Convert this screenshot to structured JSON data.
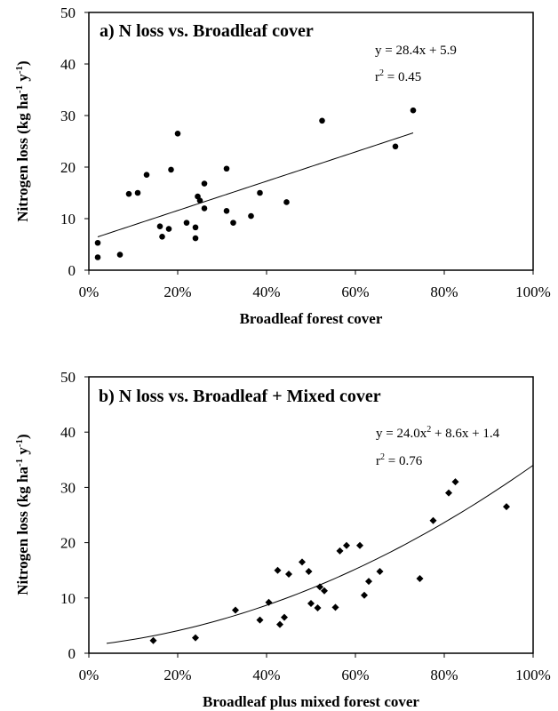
{
  "chart_data": [
    {
      "type": "scatter",
      "title": "a) N loss vs. Broadleaf cover",
      "xlabel": "Broadleaf forest cover",
      "ylabel": "Nitrogen loss (kg ha-1 y-1)",
      "ylabel_parts": {
        "main": "Nitrogen loss (kg ha",
        "sup1": "-1",
        "mid": " y",
        "sup2": "-1",
        "end": ")"
      },
      "xlim": [
        0,
        1
      ],
      "ylim": [
        0,
        50
      ],
      "xticks": [
        0,
        0.2,
        0.4,
        0.6,
        0.8,
        1.0
      ],
      "xtick_labels": [
        "0%",
        "20%",
        "40%",
        "60%",
        "80%",
        "100%"
      ],
      "yticks": [
        0,
        10,
        20,
        30,
        40,
        50
      ],
      "ytick_labels": [
        "0",
        "10",
        "20",
        "30",
        "40",
        "50"
      ],
      "marker": "circle",
      "grid": false,
      "equation": "y = 28.4x + 5.9",
      "r2_label": "r2 = 0.45",
      "r2_parts": {
        "pre": "r",
        "sup": "2",
        "post": " = 0.45"
      },
      "fit": {
        "kind": "linear",
        "a": 28.4,
        "b": 5.9,
        "x_range": [
          0.02,
          0.73
        ]
      },
      "series": [
        {
          "x": [
            0.02,
            0.02,
            0.07,
            0.09,
            0.11,
            0.13,
            0.16,
            0.165,
            0.18,
            0.185,
            0.2,
            0.22,
            0.24,
            0.24,
            0.245,
            0.25,
            0.26,
            0.26,
            0.31,
            0.31,
            0.325,
            0.365,
            0.385,
            0.445,
            0.525,
            0.69,
            0.73
          ],
          "y": [
            5.3,
            2.5,
            3.0,
            14.8,
            15.0,
            18.5,
            8.5,
            6.5,
            8.0,
            19.5,
            26.5,
            9.2,
            8.3,
            6.2,
            14.3,
            13.5,
            12.0,
            16.8,
            11.5,
            19.7,
            9.2,
            10.5,
            15.0,
            13.2,
            29.0,
            24.0,
            31.0
          ]
        }
      ]
    },
    {
      "type": "scatter",
      "title": "b) N loss vs. Broadleaf + Mixed cover",
      "xlabel": "Broadleaf plus mixed forest cover",
      "ylabel": "Nitrogen loss (kg ha-1 y-1)",
      "ylabel_parts": {
        "main": "Nitrogen loss (kg ha",
        "sup1": "-1",
        "mid": " y",
        "sup2": "-1",
        "end": ")"
      },
      "xlim": [
        0,
        1
      ],
      "ylim": [
        0,
        50
      ],
      "xticks": [
        0,
        0.2,
        0.4,
        0.6,
        0.8,
        1.0
      ],
      "xtick_labels": [
        "0%",
        "20%",
        "40%",
        "60%",
        "80%",
        "100%"
      ],
      "yticks": [
        0,
        10,
        20,
        30,
        40,
        50
      ],
      "ytick_labels": [
        "0",
        "10",
        "20",
        "30",
        "40",
        "50"
      ],
      "marker": "diamond",
      "grid": false,
      "equation": "y = 24.0x2 + 8.6x + 1.4",
      "equation_parts": {
        "pre": "y = 24.0x",
        "sup": "2",
        "post": " + 8.6x + 1.4"
      },
      "r2_label": "r2 = 0.76",
      "r2_parts": {
        "pre": "r",
        "sup": "2",
        "post": " = 0.76"
      },
      "fit": {
        "kind": "quadratic",
        "a": 24.0,
        "b": 8.6,
        "c": 1.4,
        "x_range": [
          0.04,
          1.0
        ]
      },
      "series": [
        {
          "x": [
            0.145,
            0.24,
            0.33,
            0.385,
            0.405,
            0.425,
            0.43,
            0.44,
            0.45,
            0.48,
            0.495,
            0.5,
            0.515,
            0.52,
            0.53,
            0.555,
            0.565,
            0.58,
            0.61,
            0.62,
            0.63,
            0.655,
            0.745,
            0.775,
            0.81,
            0.825,
            0.94
          ],
          "y": [
            2.3,
            2.8,
            7.8,
            6.0,
            9.2,
            15.0,
            5.2,
            6.5,
            14.3,
            16.5,
            14.8,
            9.0,
            8.2,
            12.0,
            11.3,
            8.3,
            18.5,
            19.5,
            19.5,
            10.5,
            13.0,
            14.8,
            13.5,
            24.0,
            29.0,
            31.0,
            26.5
          ]
        }
      ]
    }
  ]
}
